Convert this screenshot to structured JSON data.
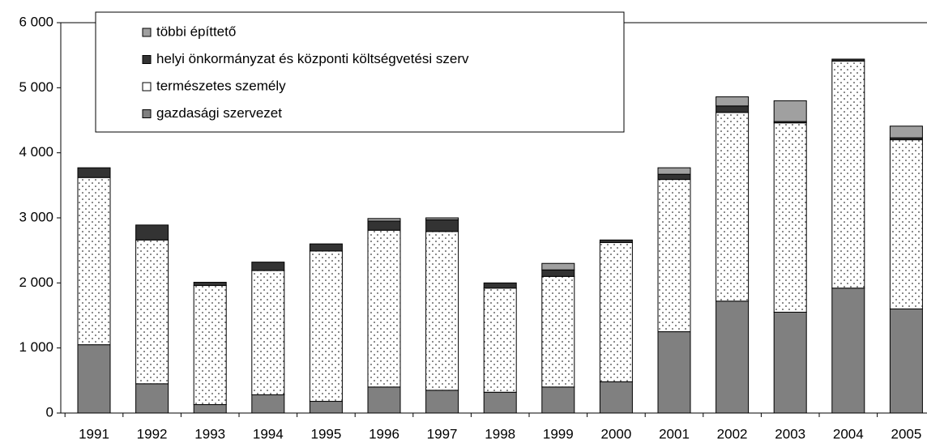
{
  "chart_data": {
    "type": "stacked_bar",
    "categories": [
      "1991",
      "1992",
      "1993",
      "1994",
      "1995",
      "1996",
      "1997",
      "1998",
      "1999",
      "2000",
      "2001",
      "2002",
      "2003",
      "2004",
      "2005"
    ],
    "series": [
      {
        "name": "gazdasági szervezet",
        "color": "#808080",
        "values": [
          1050,
          450,
          130,
          280,
          180,
          400,
          350,
          320,
          400,
          480,
          1250,
          1720,
          1550,
          1920,
          1600
        ]
      },
      {
        "name": "természetes személy",
        "color": "#ffffff",
        "pattern": "dots",
        "values": [
          2570,
          2210,
          1830,
          1910,
          2310,
          2410,
          2440,
          1600,
          1700,
          2140,
          2340,
          2900,
          2910,
          3490,
          2600
        ]
      },
      {
        "name": "helyi önkormányzat és központi költségvetési szerv",
        "color": "#333333",
        "values": [
          150,
          230,
          50,
          130,
          110,
          140,
          180,
          80,
          100,
          40,
          80,
          100,
          20,
          30,
          30
        ]
      },
      {
        "name": "többi építtető",
        "color": "#a0a0a0",
        "values": [
          0,
          0,
          0,
          0,
          0,
          40,
          30,
          0,
          100,
          0,
          100,
          140,
          320,
          0,
          180
        ]
      }
    ],
    "ylim": [
      0,
      6000
    ],
    "yticks": [
      0,
      {
        "value": 1000,
        "label": "1 000"
      },
      {
        "value": 2000,
        "label": "2 000"
      },
      {
        "value": 3000,
        "label": "3 000"
      },
      {
        "value": 4000,
        "label": "4 000"
      },
      {
        "value": 5000,
        "label": "5 000"
      },
      {
        "value": 6000,
        "label": "6 000"
      }
    ],
    "legend": "top-left"
  }
}
